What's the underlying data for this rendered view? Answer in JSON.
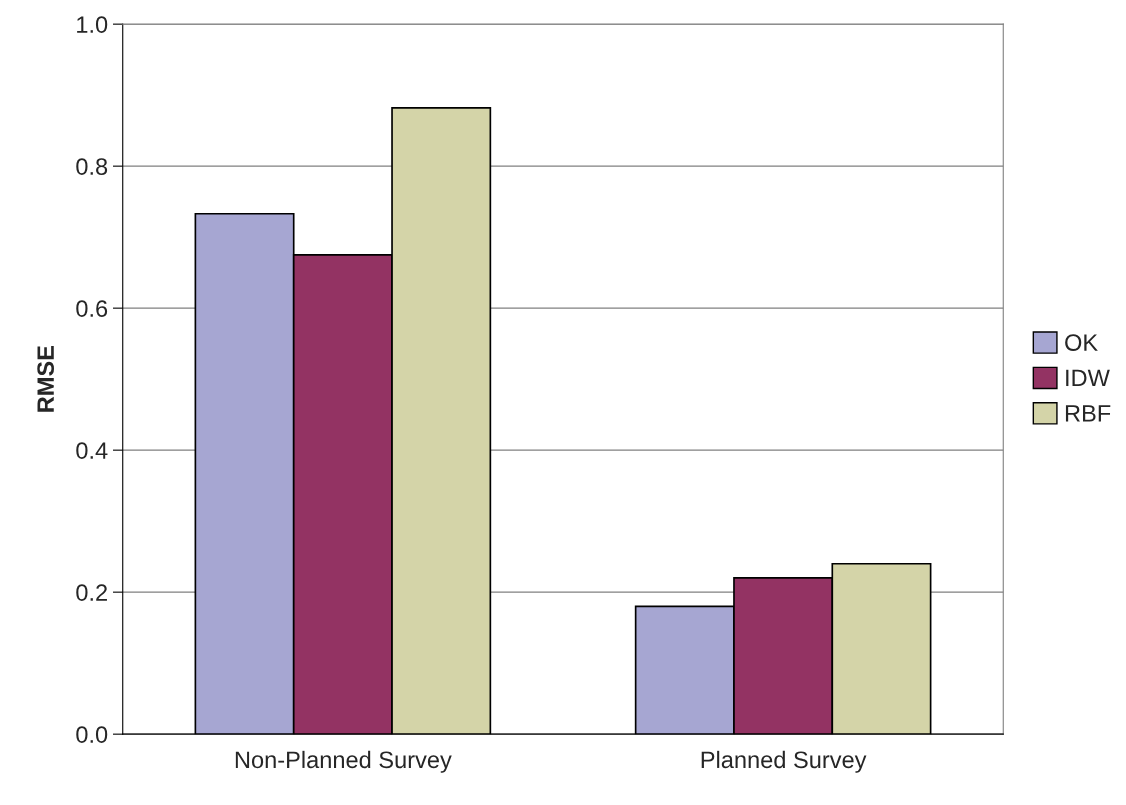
{
  "chart_data": {
    "type": "bar",
    "ylabel": "RMSE",
    "categories": [
      "Non-Planned Survey",
      "Planned Survey"
    ],
    "series": [
      {
        "name": "OK",
        "color": "#a6a6d2",
        "values": [
          0.733,
          0.18
        ]
      },
      {
        "name": "IDW",
        "color": "#933363",
        "values": [
          0.675,
          0.22
        ]
      },
      {
        "name": "RBF",
        "color": "#d4d4a8",
        "values": [
          0.882,
          0.24
        ]
      }
    ],
    "ylim": [
      0,
      1
    ],
    "yticks": [
      {
        "value": 0,
        "label": "0.0"
      },
      {
        "value": 0.2,
        "label": "0.2"
      },
      {
        "value": 0.4,
        "label": "0.4"
      },
      {
        "value": 0.6,
        "label": "0.6"
      },
      {
        "value": 0.8,
        "label": "0.8"
      },
      {
        "value": 1,
        "label": "1.0"
      }
    ],
    "grid": "y",
    "legend": "right"
  }
}
